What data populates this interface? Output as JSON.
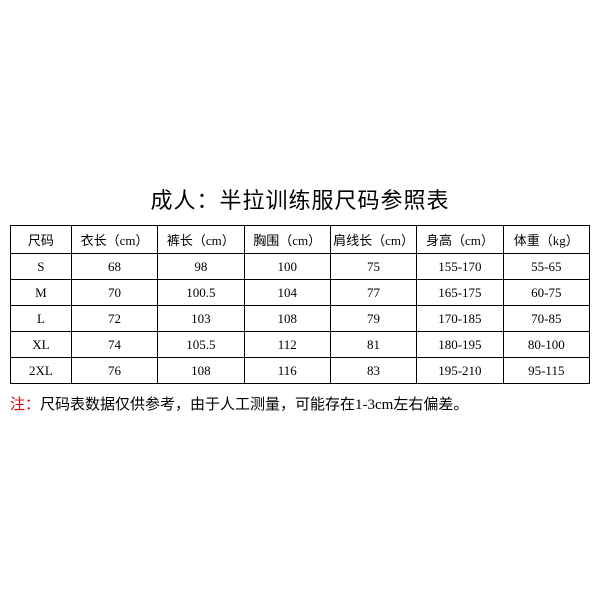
{
  "title": "成人：半拉训练服尺码参照表",
  "table": {
    "columns": [
      "尺码",
      "衣长（cm）",
      "裤长（cm）",
      "胸围（cm）",
      "肩线长（cm）",
      "身高（cm）",
      "体重（kg）"
    ],
    "rows": [
      [
        "S",
        "68",
        "98",
        "100",
        "75",
        "155-170",
        "55-65"
      ],
      [
        "M",
        "70",
        "100.5",
        "104",
        "77",
        "165-175",
        "60-75"
      ],
      [
        "L",
        "72",
        "103",
        "108",
        "79",
        "170-185",
        "70-85"
      ],
      [
        "XL",
        "74",
        "105.5",
        "112",
        "81",
        "180-195",
        "80-100"
      ],
      [
        "2XL",
        "76",
        "108",
        "116",
        "83",
        "195-210",
        "95-115"
      ]
    ],
    "col_classes": [
      "col-size",
      "col-data",
      "col-data",
      "col-data",
      "col-data",
      "col-data",
      "col-data"
    ]
  },
  "note": {
    "label": "注：",
    "text": "尺码表数据仅供参考，由于人工测量，可能存在1-3cm左右偏差。"
  },
  "style": {
    "background_color": "#ffffff",
    "border_color": "#000000",
    "text_color": "#000000",
    "note_label_color": "#d00000",
    "title_fontsize": 22,
    "table_fontsize": 13,
    "note_fontsize": 15
  }
}
